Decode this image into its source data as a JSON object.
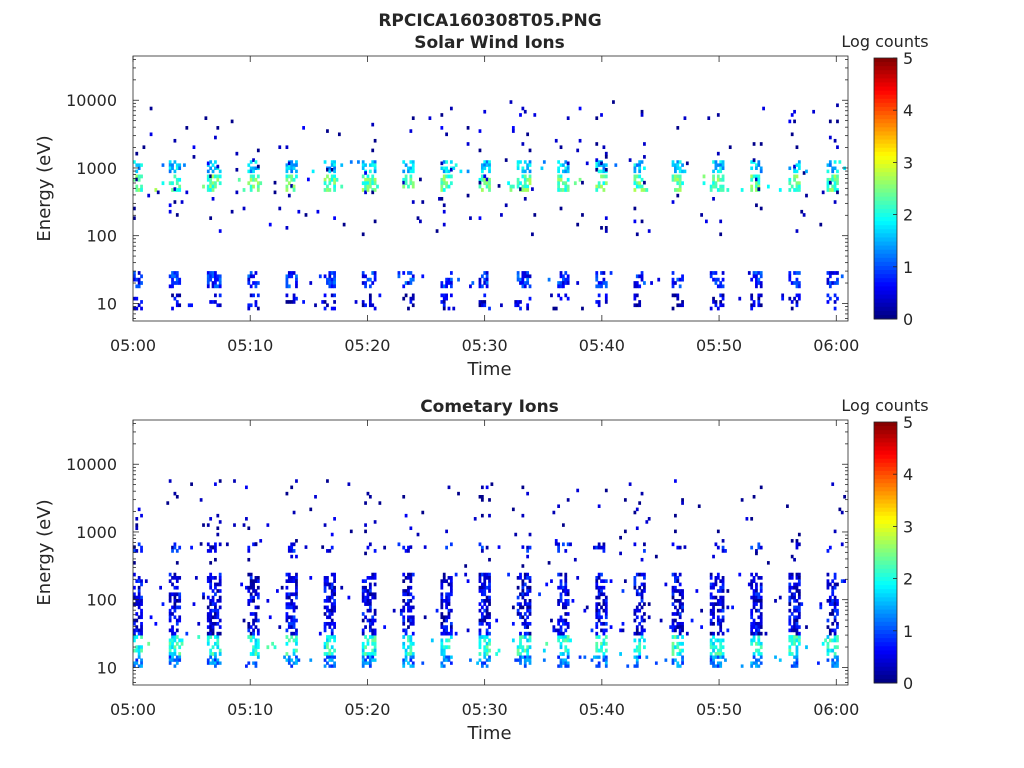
{
  "figure": {
    "filename": "RPCICA160308T05.PNG"
  },
  "chart_data": [
    {
      "type": "heatmap",
      "title": "Solar Wind Ions",
      "xlabel": "Time",
      "ylabel": "Energy (eV)",
      "x_ticks": [
        "05:00",
        "05:10",
        "05:20",
        "05:30",
        "05:40",
        "05:50",
        "06:00"
      ],
      "xlim": [
        "05:00",
        "06:01"
      ],
      "y_scale": "log",
      "y_ticks": [
        10,
        100,
        1000,
        10000
      ],
      "y_tick_labels": [
        "10",
        "100",
        "1000",
        "10000"
      ],
      "ylim": [
        5.5,
        45000
      ],
      "grid": false,
      "colorbar": {
        "label": "Log counts",
        "colormap": "jet",
        "range": [
          0,
          5
        ],
        "ticks": [
          0,
          1,
          2,
          3,
          4,
          5
        ],
        "tick_labels": [
          "0",
          "1",
          "2",
          "3",
          "4",
          "5"
        ]
      },
      "sweep_period_min": 3.3,
      "bands": [
        {
          "energy_range_eV": [
            450,
            800
          ],
          "log_counts": 2.3
        },
        {
          "energy_range_eV": [
            850,
            1300
          ],
          "log_counts": 1.6
        },
        {
          "energy_range_eV": [
            17,
            30
          ],
          "log_counts": 0.8
        },
        {
          "energy_range_eV": [
            8,
            14
          ],
          "log_counts": 0.4
        },
        {
          "energy_range_eV": [
            100,
            10000
          ],
          "log_counts": 0.2
        }
      ]
    },
    {
      "type": "heatmap",
      "title": "Cometary Ions",
      "xlabel": "Time",
      "ylabel": "Energy (eV)",
      "x_ticks": [
        "05:00",
        "05:10",
        "05:20",
        "05:30",
        "05:40",
        "05:50",
        "06:00"
      ],
      "xlim": [
        "05:00",
        "06:01"
      ],
      "y_scale": "log",
      "y_ticks": [
        10,
        100,
        1000,
        10000
      ],
      "y_tick_labels": [
        "10",
        "100",
        "1000",
        "10000"
      ],
      "ylim": [
        5.5,
        45000
      ],
      "grid": false,
      "colorbar": {
        "label": "Log counts",
        "colormap": "jet",
        "range": [
          0,
          5
        ],
        "ticks": [
          0,
          1,
          2,
          3,
          4,
          5
        ],
        "tick_labels": [
          "0",
          "1",
          "2",
          "3",
          "4",
          "5"
        ]
      },
      "sweep_period_min": 3.3,
      "bands": [
        {
          "energy_range_eV": [
            15,
            30
          ],
          "log_counts": 2.0
        },
        {
          "energy_range_eV": [
            10,
            15
          ],
          "log_counts": 1.2
        },
        {
          "energy_range_eV": [
            30,
            250
          ],
          "log_counts": 0.5
        },
        {
          "energy_range_eV": [
            500,
            700
          ],
          "log_counts": 0.6
        },
        {
          "energy_range_eV": [
            300,
            6000
          ],
          "log_counts": 0.15
        }
      ]
    }
  ]
}
